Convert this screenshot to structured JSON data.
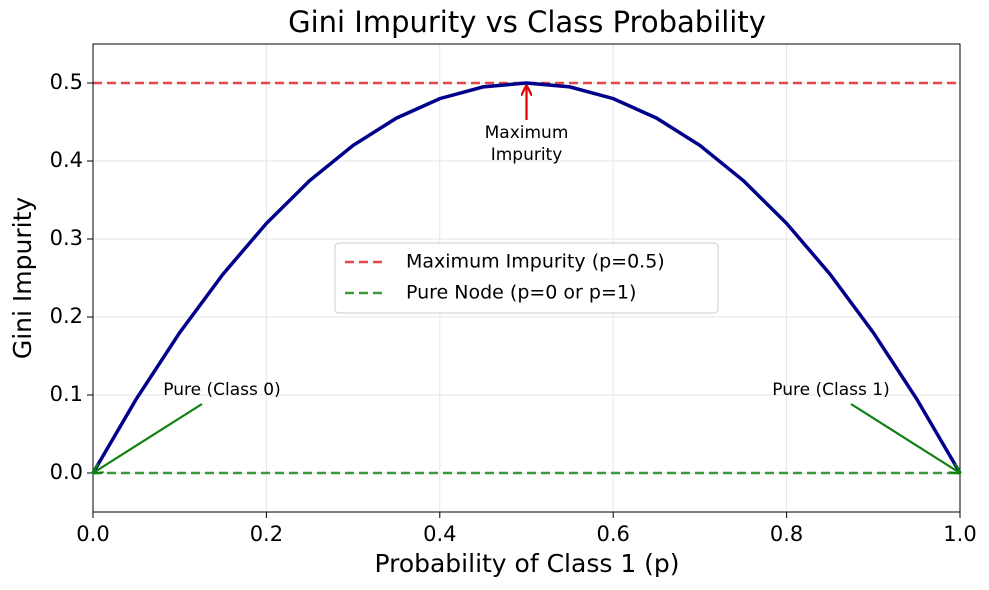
{
  "chart_data": {
    "type": "line",
    "title": "Gini Impurity vs Class Probability",
    "xlabel": "Probability of Class 1 (p)",
    "ylabel": "Gini Impurity",
    "xlim": [
      0,
      1
    ],
    "ylim": [
      -0.05,
      0.55
    ],
    "xticks": [
      {
        "value": 0,
        "label": "0.0"
      },
      {
        "value": 0.2,
        "label": "0.2"
      },
      {
        "value": 0.4,
        "label": "0.4"
      },
      {
        "value": 0.6,
        "label": "0.6"
      },
      {
        "value": 0.8,
        "label": "0.8"
      },
      {
        "value": 1,
        "label": "1.0"
      }
    ],
    "yticks": [
      {
        "value": 0,
        "label": "0.0"
      },
      {
        "value": 0.1,
        "label": "0.1"
      },
      {
        "value": 0.2,
        "label": "0.2"
      },
      {
        "value": 0.3,
        "label": "0.3"
      },
      {
        "value": 0.4,
        "label": "0.4"
      },
      {
        "value": 0.5,
        "label": "0.5"
      }
    ],
    "grid": true,
    "series": [
      {
        "color": "#00008b",
        "x": [
          0,
          0.05,
          0.1,
          0.15,
          0.2,
          0.25,
          0.3,
          0.35,
          0.4,
          0.45,
          0.5,
          0.55,
          0.6,
          0.65,
          0.7,
          0.75,
          0.8,
          0.85,
          0.9,
          0.95,
          1
        ],
        "values": [
          0,
          0.095,
          0.18,
          0.255,
          0.32,
          0.375,
          0.42,
          0.455,
          0.48,
          0.495,
          0.5,
          0.495,
          0.48,
          0.455,
          0.42,
          0.375,
          0.32,
          0.255,
          0.18,
          0.095,
          0
        ]
      }
    ],
    "reference_lines": [
      {
        "name": "Maximum Impurity (p=0.5)",
        "value": 0.5,
        "color": "#e84545"
      },
      {
        "name": "Pure Node (p=0 or p=1)",
        "value": 0,
        "color": "#3a9a3a"
      }
    ],
    "legend": "center",
    "annotations": [
      {
        "text": [
          "Maximum",
          "Impurity"
        ],
        "x": 0.5,
        "y": 0.5,
        "color": "#e00000"
      },
      {
        "text": [
          "Pure (Class 0)"
        ],
        "x": 0,
        "y": 0,
        "color": "#108010"
      },
      {
        "text": [
          "Pure (Class 1)"
        ],
        "x": 1,
        "y": 0,
        "color": "#108010"
      }
    ]
  }
}
